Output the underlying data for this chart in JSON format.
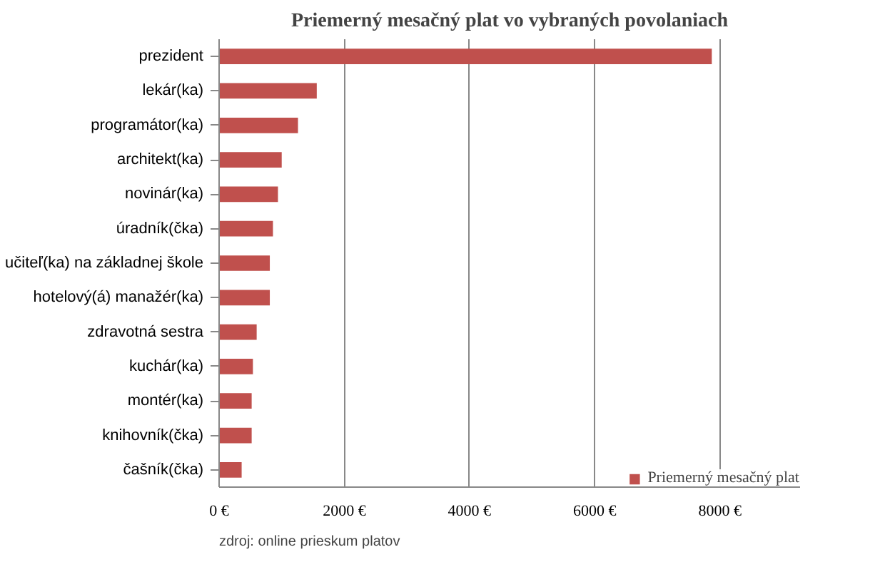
{
  "chart_data": {
    "type": "bar",
    "orientation": "horizontal",
    "title": "Priemerný mesačný plat vo vybraných povolaniach",
    "categories": [
      "prezident",
      "lekár(ka)",
      "programátor(ka)",
      "architekt(ka)",
      "novinár(ka)",
      "úradník(čka)",
      "učiteľ(ka) na základnej škole",
      "hotelový(á) manažér(ka)",
      "zdravotná sestra",
      "kuchár(ka)",
      "montér(ka)",
      "knihovník(čka)",
      "čašník(čka)"
    ],
    "series": [
      {
        "name": "Priemerný mesačný plat",
        "color": "#c0504d",
        "values": [
          7870,
          1560,
          1260,
          1000,
          940,
          860,
          810,
          810,
          600,
          540,
          520,
          520,
          360
        ]
      }
    ],
    "xlim": [
      0,
      9280
    ],
    "xticks": [
      {
        "value": 0,
        "label": "0 €"
      },
      {
        "value": 2000,
        "label": "2000 €"
      },
      {
        "value": 4000,
        "label": "4000 €"
      },
      {
        "value": 6000,
        "label": "6000 €"
      },
      {
        "value": 8000,
        "label": "8000 €"
      }
    ],
    "grid": "x",
    "legend": "bottom right",
    "annotations": [
      "zdroj: online prieskum platov"
    ]
  }
}
